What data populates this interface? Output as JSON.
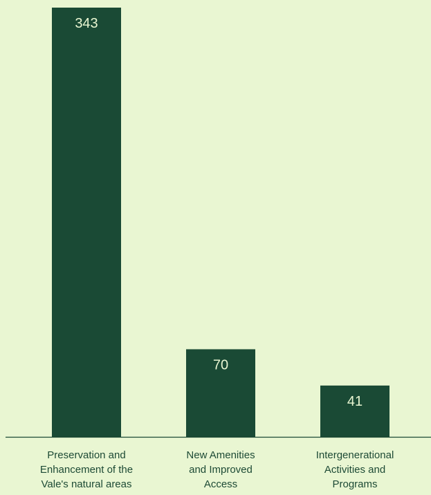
{
  "colors": {
    "background": "#e9f6d2",
    "bar": "#1a4a35",
    "axis": "#1d4a35",
    "label": "#1d4a35",
    "value_text": "#e9f6d2"
  },
  "chart_data": {
    "type": "bar",
    "title": "",
    "xlabel": "",
    "ylabel": "",
    "ylim": [
      0,
      343
    ],
    "grid": false,
    "categories": [
      [
        "Preservation and",
        "Enhancement of the",
        "Vale's natural areas"
      ],
      [
        "New Amenities",
        "and Improved",
        "Access"
      ],
      [
        "Intergenerational",
        "Activities and",
        "Programs"
      ]
    ],
    "values": [
      343,
      70,
      41
    ],
    "data_labels": [
      "343",
      "70",
      "41"
    ]
  }
}
